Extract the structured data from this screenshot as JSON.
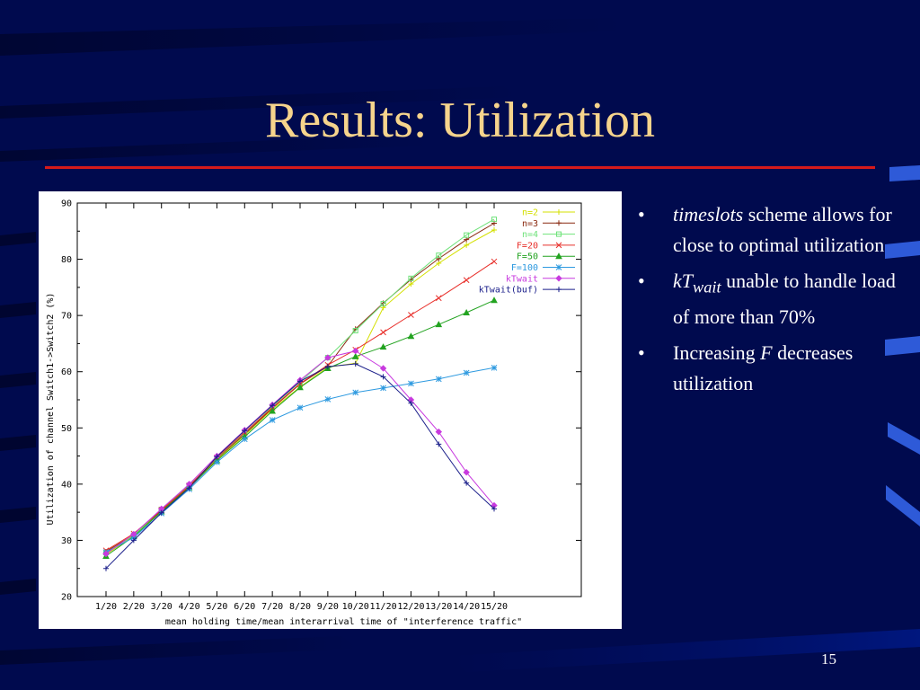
{
  "slide": {
    "title": "Results: Utilization",
    "page_number": "15",
    "background_color": "#000a4e",
    "title_color": "#f6d48c",
    "rule_color": "#d61a1a"
  },
  "bullets": [
    {
      "em": "timeslots",
      "text": " scheme allows for close to optimal utilization"
    },
    {
      "em": "kT",
      "sub": "wait",
      "text": " unable to handle load of more than 70%"
    },
    {
      "text": "Increasing ",
      "em": "F",
      "text2": " decreases utilization"
    }
  ],
  "chart_data": {
    "type": "line",
    "title": "",
    "xlabel": "mean holding time/mean interarrival time of \"interference traffic\"",
    "ylabel": "Utilization of channel Switch1->Switch2 (%)",
    "categories": [
      "1/20",
      "2/20",
      "3/20",
      "4/20",
      "5/20",
      "6/20",
      "7/20",
      "8/20",
      "9/20",
      "10/20",
      "11/20",
      "12/20",
      "13/20",
      "14/20",
      "15/20"
    ],
    "ylim": [
      20,
      90
    ],
    "yticks": [
      20,
      30,
      40,
      50,
      60,
      70,
      80,
      90
    ],
    "grid": false,
    "legend_position": "top-right",
    "series": [
      {
        "name": "n=2",
        "color": "#d4e000",
        "marker": "plus",
        "values": [
          27.5,
          30.8,
          35.2,
          39.5,
          44.3,
          48.7,
          53.3,
          57.3,
          60.8,
          61.5,
          71.4,
          75.6,
          79.3,
          82.5,
          85.2
        ]
      },
      {
        "name": "n=3",
        "color": "#8a2a10",
        "marker": "plus",
        "values": [
          28.0,
          31.0,
          35.3,
          39.6,
          44.5,
          48.9,
          53.5,
          57.8,
          61.0,
          67.6,
          72.2,
          76.4,
          80.1,
          83.5,
          86.4
        ]
      },
      {
        "name": "n=4",
        "color": "#6fe27a",
        "marker": "square",
        "values": [
          27.8,
          30.9,
          35.5,
          39.8,
          44.6,
          49.1,
          53.8,
          58.2,
          62.5,
          67.3,
          72.1,
          76.6,
          80.7,
          84.3,
          87.1
        ]
      },
      {
        "name": "F=20",
        "color": "#e8302b",
        "marker": "cross",
        "values": [
          28.2,
          31.2,
          35.4,
          39.7,
          44.7,
          49.2,
          53.6,
          57.9,
          61.2,
          63.9,
          67.0,
          70.1,
          73.1,
          76.3,
          79.6
        ]
      },
      {
        "name": "F=50",
        "color": "#22a320",
        "marker": "triangle",
        "values": [
          27.2,
          30.7,
          35.1,
          39.4,
          44.2,
          48.4,
          53.0,
          57.2,
          60.6,
          62.7,
          64.4,
          66.3,
          68.4,
          70.5,
          72.7
        ]
      },
      {
        "name": "F=100",
        "color": "#2e9ae0",
        "marker": "star",
        "values": [
          27.9,
          30.5,
          34.8,
          39.1,
          43.9,
          48.0,
          51.4,
          53.6,
          55.1,
          56.3,
          57.1,
          57.9,
          58.7,
          59.8,
          60.7
        ]
      },
      {
        "name": "kTwait",
        "color": "#c83adf",
        "marker": "diamond",
        "values": [
          27.6,
          31.1,
          35.6,
          40.0,
          45.0,
          49.6,
          54.1,
          58.5,
          62.5,
          63.7,
          60.6,
          55.0,
          49.3,
          42.1,
          36.2
        ]
      },
      {
        "name": "kTwait(buf)",
        "color": "#1a1e8a",
        "marker": "plus",
        "values": [
          25.0,
          30.0,
          34.9,
          39.3,
          44.9,
          49.5,
          54.0,
          58.3,
          60.9,
          61.4,
          59.1,
          54.4,
          47.1,
          40.2,
          35.6
        ]
      }
    ]
  }
}
